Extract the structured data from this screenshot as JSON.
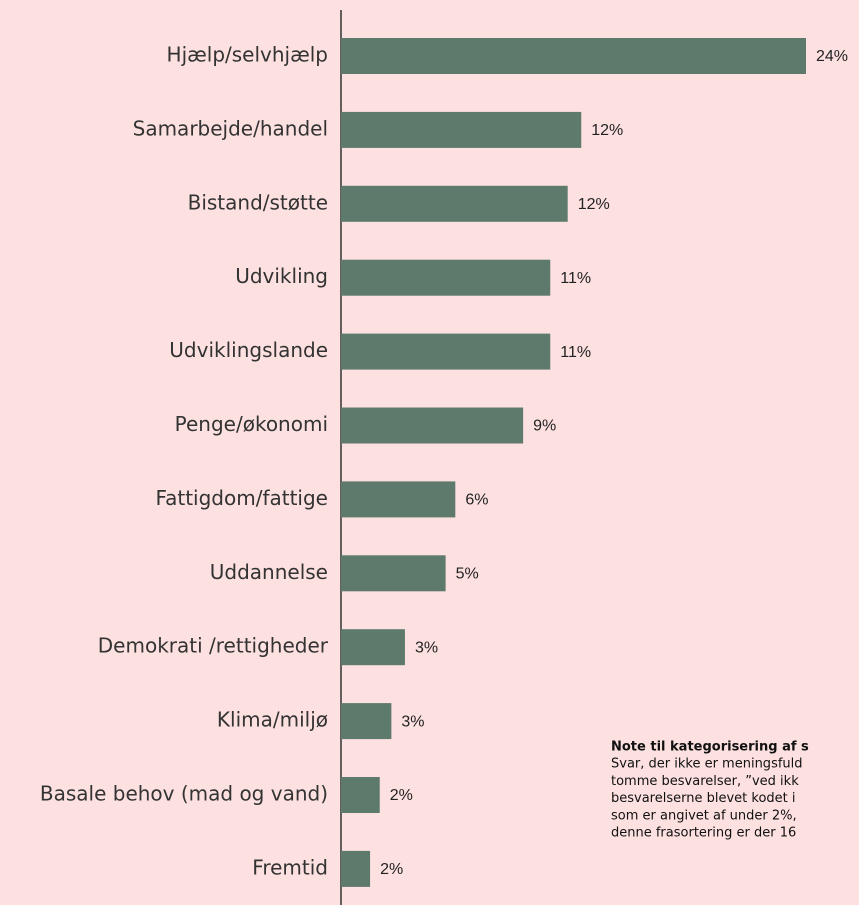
{
  "chart_data": {
    "type": "bar",
    "orientation": "horizontal",
    "categories": [
      "Hjælp/selvhjælp",
      "Samarbejde/handel",
      "Bistand/støtte",
      "Udvikling",
      "Udviklingslande",
      "Penge/økonomi",
      "Fattigdom/fattige",
      "Uddannelse",
      "Demokrati /rettigheder",
      "Klima/miljø",
      "Basale behov (mad og vand)",
      "Fremtid"
    ],
    "values": [
      24,
      12.4,
      11.7,
      10.8,
      10.8,
      9.4,
      5.9,
      5.4,
      3.3,
      2.6,
      2.0,
      1.5
    ],
    "value_labels": [
      "24%",
      "12%",
      "12%",
      "11%",
      "11%",
      "9%",
      "6%",
      "5%",
      "3%",
      "3%",
      "2%",
      "2%"
    ],
    "color": "#5e7a6d",
    "xlim": [
      0,
      24
    ]
  },
  "note": {
    "title": "Note til kategorisering af s",
    "lines": [
      "Svar, der ikke er meningsfuld",
      "tomme besvarelser, ”ved ikk",
      "besvarelserne blevet kodet i",
      "som er angivet af under 2%,",
      "denne frasortering er der 16"
    ]
  }
}
